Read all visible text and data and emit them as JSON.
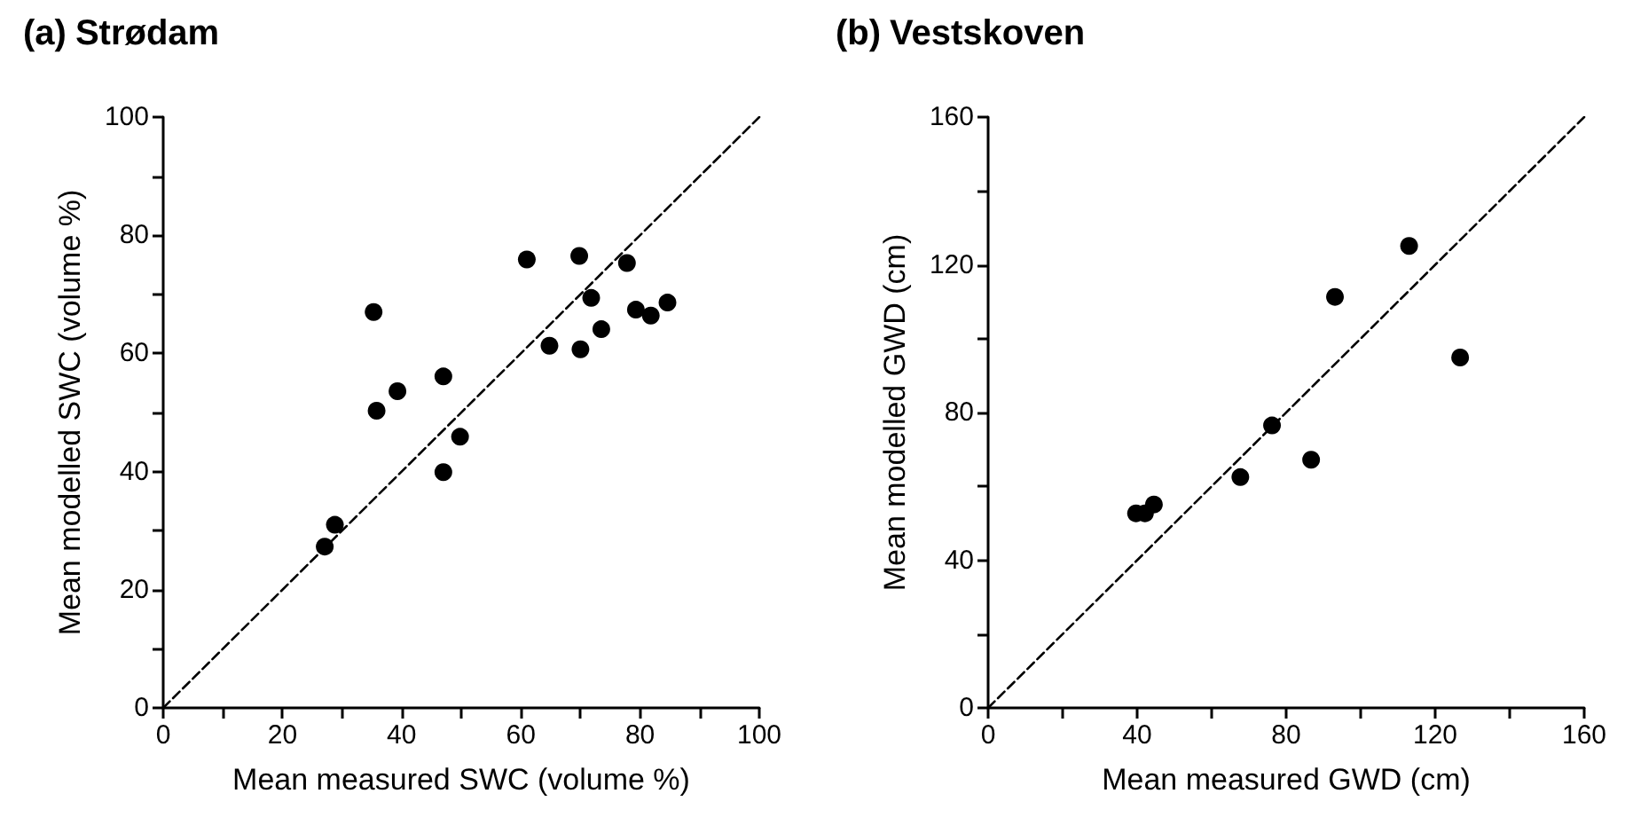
{
  "chart_data": [
    {
      "type": "scatter",
      "title": "(a) Strødam",
      "xlabel": "Mean measured SWC (volume %)",
      "ylabel": "Mean modelled SWC (volume %)",
      "marker": "circle",
      "xlim": [
        0,
        100
      ],
      "ylim": [
        0,
        100
      ],
      "xticks": [
        0,
        {
          "value": 10,
          "label": null
        },
        20,
        {
          "value": 30,
          "label": null
        },
        40,
        {
          "value": 50,
          "label": null
        },
        60,
        {
          "value": 70,
          "label": null
        },
        80,
        {
          "value": 90,
          "label": null
        },
        100
      ],
      "yticks": [
        0,
        {
          "value": 10,
          "label": null
        },
        20,
        {
          "value": 30,
          "label": null
        },
        40,
        {
          "value": 50,
          "label": null
        },
        60,
        {
          "value": 70,
          "label": null
        },
        80,
        {
          "value": 90,
          "label": null
        },
        100
      ],
      "series": [
        {
          "color": "#000000",
          "x": [
            27.1,
            28.8,
            35.3,
            35.8,
            39.3,
            47.0,
            47.0,
            49.8,
            61.0,
            64.8,
            69.8,
            70.0,
            71.8,
            73.5,
            77.8,
            79.3,
            81.8,
            84.6
          ],
          "values": [
            27.3,
            31.0,
            67.0,
            50.3,
            53.6,
            56.1,
            39.9,
            45.9,
            75.9,
            61.3,
            76.5,
            60.7,
            69.4,
            64.1,
            75.3,
            67.4,
            66.4,
            68.6
          ]
        },
        {
          "type": "line",
          "color": "#000000",
          "line_style": "dashed",
          "marker": "none",
          "x": [
            0,
            100
          ],
          "values": [
            0,
            100
          ]
        }
      ]
    },
    {
      "type": "scatter",
      "title": "(b) Vestskoven",
      "xlabel": "Mean measured GWD (cm)",
      "ylabel": "Mean modelled GWD (cm)",
      "marker": "circle",
      "xlim": [
        0,
        160
      ],
      "ylim": [
        0,
        160
      ],
      "xticks": [
        0,
        {
          "value": 20,
          "label": null
        },
        40,
        {
          "value": 60,
          "label": null
        },
        80,
        {
          "value": 100,
          "label": null
        },
        120,
        {
          "value": 140,
          "label": null
        },
        160
      ],
      "yticks": [
        0,
        {
          "value": 20,
          "label": null
        },
        40,
        {
          "value": 60,
          "label": null
        },
        80,
        {
          "value": 100,
          "label": null
        },
        120,
        {
          "value": 140,
          "label": null
        },
        160
      ],
      "series": [
        {
          "color": "#000000",
          "x": [
            39.7,
            42.1,
            44.5,
            67.7,
            76.2,
            86.7,
            93.1,
            113.0,
            126.7
          ],
          "values": [
            52.7,
            52.7,
            55.1,
            62.5,
            76.5,
            67.2,
            111.3,
            125.1,
            94.9
          ]
        },
        {
          "type": "line",
          "color": "#000000",
          "line_style": "dashed",
          "marker": "none",
          "x": [
            0,
            160
          ],
          "values": [
            0,
            160
          ]
        }
      ]
    }
  ]
}
